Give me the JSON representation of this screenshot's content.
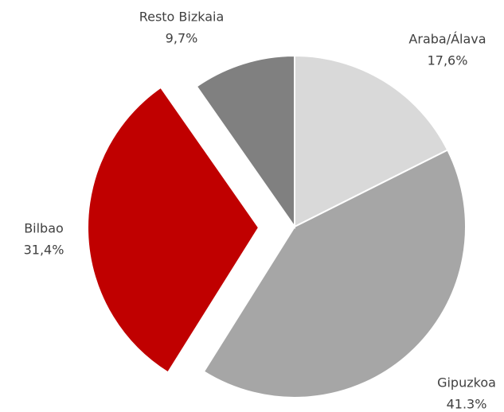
{
  "chart_data": {
    "type": "pie",
    "categories": [
      "Araba/Álava",
      "Gipuzkoa",
      "Bilbao",
      "Resto Bizkaia"
    ],
    "values": [
      17.6,
      41.3,
      31.4,
      9.7
    ],
    "value_labels": [
      "17,6%",
      "41.3%",
      "31,4%",
      "9,7%"
    ],
    "colors": [
      "#d9d9d9",
      "#a6a6a6",
      "#c00000",
      "#808080"
    ],
    "explode": [
      false,
      false,
      true,
      false
    ]
  }
}
